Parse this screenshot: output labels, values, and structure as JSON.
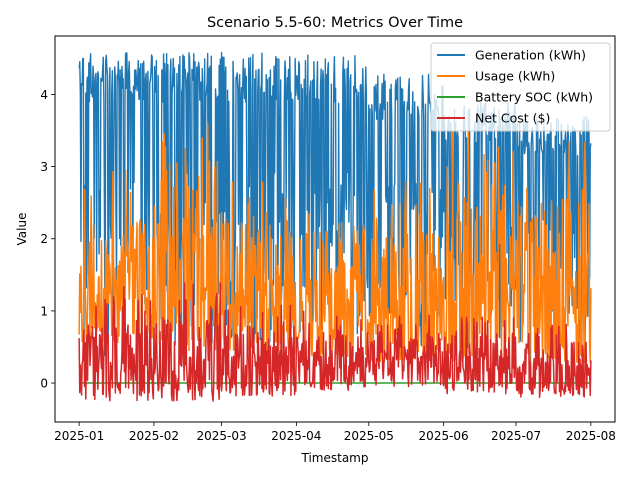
{
  "chart_data": {
    "type": "line",
    "title": "Scenario 5.5-60: Metrics Over Time",
    "xlabel": "Timestamp",
    "ylabel": "Value",
    "x_range": [
      "2025-01-01",
      "2025-08-01"
    ],
    "xlim": [
      "2024-12-22",
      "2025-08-11"
    ],
    "ylim": [
      -0.54,
      4.81
    ],
    "xticks": [
      "2025-01",
      "2025-02",
      "2025-03",
      "2025-04",
      "2025-05",
      "2025-06",
      "2025-07",
      "2025-08"
    ],
    "yticks": [
      0,
      1,
      2,
      3,
      4
    ],
    "grid": false,
    "legend_position": "top-right",
    "series": [
      {
        "name": "Generation (kWh)",
        "color": "#1f77b4",
        "monthly_peak": [
          4.58,
          4.58,
          4.58,
          4.56,
          4.3,
          3.9,
          3.7,
          3.85
        ],
        "monthly_low": [
          0.3,
          0.45,
          0.5,
          0.55,
          0.5,
          0.4,
          0.3,
          0.4
        ]
      },
      {
        "name": "Usage (kWh)",
        "color": "#ff7f0e",
        "monthly_peak": [
          3.0,
          3.75,
          2.9,
          2.7,
          2.8,
          3.5,
          3.4,
          3.05
        ],
        "monthly_low": [
          0.55,
          0.45,
          0.4,
          0.35,
          0.3,
          0.3,
          0.28,
          0.3
        ]
      },
      {
        "name": "Battery SOC (kWh)",
        "color": "#2ca02c",
        "monthly_peak": [
          0.0,
          0.0,
          0.0,
          0.0,
          0.0,
          0.0,
          0.0,
          0.0
        ],
        "monthly_low": [
          0.0,
          0.0,
          0.0,
          0.0,
          0.0,
          0.0,
          0.0,
          0.0
        ]
      },
      {
        "name": "Net Cost ($)",
        "color": "#d62728",
        "monthly_peak": [
          1.35,
          1.4,
          1.1,
          1.0,
          0.95,
          1.05,
          0.9,
          0.95
        ],
        "monthly_low": [
          -0.25,
          -0.25,
          -0.18,
          -0.1,
          -0.05,
          -0.15,
          -0.2,
          -0.15
        ]
      }
    ]
  }
}
